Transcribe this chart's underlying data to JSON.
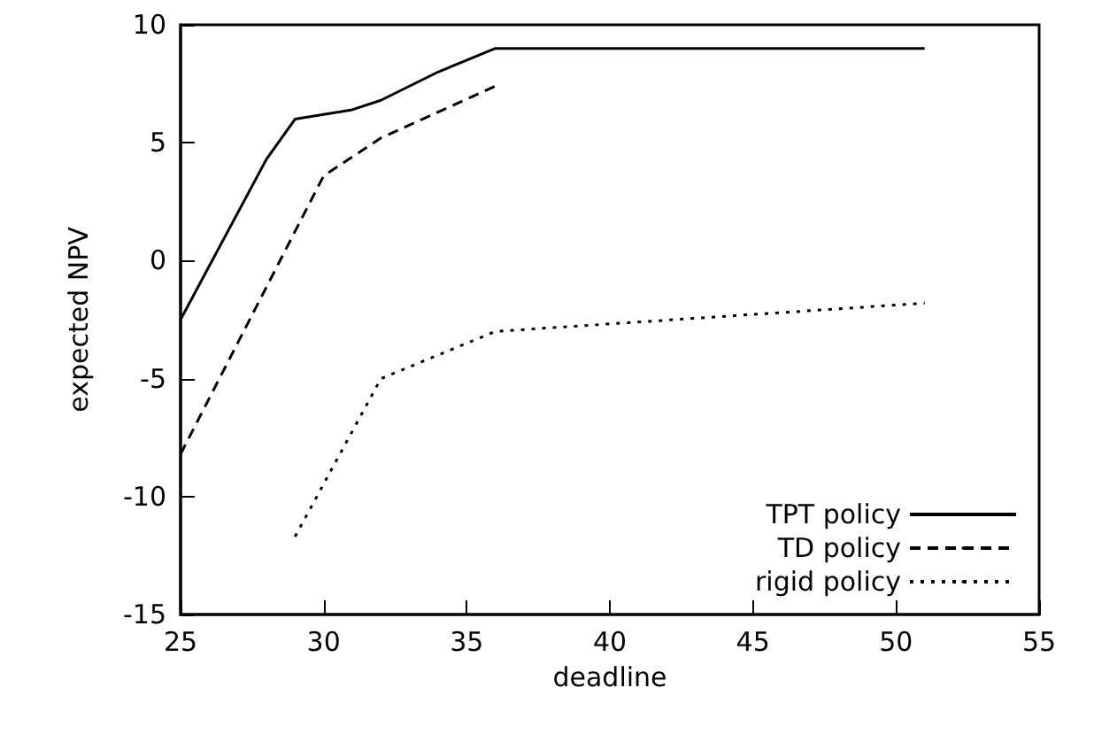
{
  "chart_data": {
    "type": "line",
    "xlabel": "deadline",
    "ylabel": "expected NPV",
    "xlim": [
      25,
      55
    ],
    "xticks": [
      25,
      30,
      35,
      40,
      45,
      50,
      55
    ],
    "ylim": [
      -15,
      10
    ],
    "yticks": [
      -15,
      -10,
      -5,
      0,
      5,
      10
    ],
    "grid": false,
    "legend": "bottom right",
    "marker": "none",
    "series": [
      {
        "name": "TPT policy",
        "color": "#000000",
        "line_style": "solid",
        "x": [
          25,
          28,
          29,
          31,
          32,
          34,
          36,
          51
        ],
        "values": [
          -2.5,
          4.3,
          6.0,
          6.4,
          6.8,
          8.0,
          9.0,
          9.0
        ]
      },
      {
        "name": "TD policy",
        "color": "#000000",
        "line_style": "dashed",
        "x": [
          25,
          30,
          31,
          32,
          36
        ],
        "values": [
          -8.2,
          3.6,
          4.4,
          5.2,
          7.4
        ]
      },
      {
        "name": "rigid policy",
        "color": "#000000",
        "line_style": "dotted",
        "x": [
          29,
          32,
          36,
          51
        ],
        "values": [
          -11.7,
          -5.0,
          -3.0,
          -1.8
        ]
      }
    ]
  }
}
